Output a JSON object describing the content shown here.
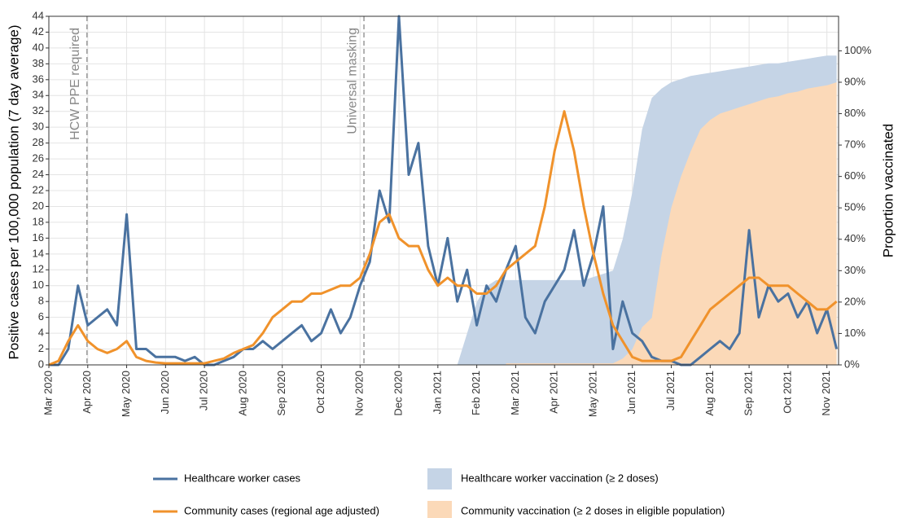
{
  "chart_data": {
    "type": "line",
    "y_label": "Positive cases per 100,000 population (7 day average)",
    "y2_label": "Proportion vaccinated",
    "x": [
      0,
      0.25,
      0.5,
      0.75,
      1,
      1.25,
      1.5,
      1.75,
      2,
      2.25,
      2.5,
      2.75,
      3,
      3.25,
      3.5,
      3.75,
      4,
      4.25,
      4.5,
      4.75,
      5,
      5.25,
      5.5,
      5.75,
      6,
      6.25,
      6.5,
      6.75,
      7,
      7.25,
      7.5,
      7.75,
      8,
      8.25,
      8.5,
      8.75,
      9,
      9.25,
      9.5,
      9.75,
      10,
      10.25,
      10.5,
      10.75,
      11,
      11.25,
      11.5,
      11.75,
      12,
      12.25,
      12.5,
      12.75,
      13,
      13.25,
      13.5,
      13.75,
      14,
      14.25,
      14.5,
      14.75,
      15,
      15.25,
      15.5,
      15.75,
      16,
      16.25,
      16.5,
      16.75,
      17,
      17.25,
      17.5,
      17.75,
      18,
      18.25,
      18.5,
      18.75,
      19,
      19.25,
      19.5,
      19.75,
      20,
      20.25
    ],
    "xlim": [
      0,
      20.3
    ],
    "xticks": [
      {
        "value": 0,
        "label": "Mar 2020"
      },
      {
        "value": 1,
        "label": "Apr 2020"
      },
      {
        "value": 2,
        "label": "May 2020"
      },
      {
        "value": 3,
        "label": "Jun 2020"
      },
      {
        "value": 4,
        "label": "Jul 2020"
      },
      {
        "value": 5,
        "label": "Aug 2020"
      },
      {
        "value": 6,
        "label": "Sep 2020"
      },
      {
        "value": 7,
        "label": "Oct 2020"
      },
      {
        "value": 8,
        "label": "Nov 2020"
      },
      {
        "value": 9,
        "label": "Dec 2020"
      },
      {
        "value": 10,
        "label": "Jan 2021"
      },
      {
        "value": 11,
        "label": "Feb 2021"
      },
      {
        "value": 12,
        "label": "Mar 2021"
      },
      {
        "value": 13,
        "label": "Apr 2021"
      },
      {
        "value": 14,
        "label": "May 2021"
      },
      {
        "value": 15,
        "label": "Jun 2021"
      },
      {
        "value": 16,
        "label": "Jul 2021"
      },
      {
        "value": 17,
        "label": "Aug 2021"
      },
      {
        "value": 18,
        "label": "Sep 2021"
      },
      {
        "value": 19,
        "label": "Oct 2021"
      },
      {
        "value": 20,
        "label": "Nov 2021"
      }
    ],
    "ylim": [
      0,
      44
    ],
    "yticks": [
      0,
      2,
      4,
      6,
      8,
      10,
      12,
      14,
      16,
      18,
      20,
      22,
      24,
      26,
      28,
      30,
      32,
      34,
      36,
      38,
      40,
      42,
      44
    ],
    "y2lim": [
      0,
      111
    ],
    "y2ticks": [
      {
        "value": 0,
        "label": "0%"
      },
      {
        "value": 10,
        "label": "10%"
      },
      {
        "value": 20,
        "label": "20%"
      },
      {
        "value": 30,
        "label": "30%"
      },
      {
        "value": 40,
        "label": "40%"
      },
      {
        "value": 50,
        "label": "50%"
      },
      {
        "value": 60,
        "label": "60%"
      },
      {
        "value": 70,
        "label": "70%"
      },
      {
        "value": 80,
        "label": "80%"
      },
      {
        "value": 90,
        "label": "90%"
      },
      {
        "value": 100,
        "label": "100%"
      }
    ],
    "grid": true,
    "series": [
      {
        "name": "Healthcare worker vaccination (≥ 2 doses)",
        "type": "area",
        "axis": "y2",
        "color": "#c5d4e6",
        "values": [
          null,
          null,
          null,
          null,
          null,
          null,
          null,
          null,
          null,
          null,
          null,
          null,
          null,
          null,
          null,
          null,
          null,
          null,
          null,
          null,
          null,
          null,
          null,
          null,
          null,
          null,
          null,
          null,
          null,
          null,
          null,
          null,
          null,
          null,
          null,
          null,
          null,
          null,
          null,
          null,
          null,
          null,
          0,
          10,
          20,
          25,
          27,
          27,
          27,
          27,
          27,
          27,
          27,
          27,
          27,
          27,
          28,
          29,
          30,
          40,
          55,
          75,
          85,
          88,
          90,
          91,
          92,
          92.5,
          93,
          93.5,
          94,
          94.5,
          95,
          95.5,
          96,
          96,
          96.5,
          97,
          97.5,
          98,
          98.5,
          98.5
        ]
      },
      {
        "name": "Community vaccination (≥ 2 doses in eligible population)",
        "type": "area",
        "axis": "y2",
        "color": "#fbd9b8",
        "values": [
          null,
          null,
          null,
          null,
          null,
          null,
          null,
          null,
          null,
          null,
          null,
          null,
          null,
          null,
          null,
          null,
          null,
          null,
          null,
          null,
          null,
          null,
          null,
          null,
          null,
          null,
          null,
          null,
          null,
          null,
          null,
          null,
          null,
          null,
          null,
          null,
          null,
          null,
          null,
          null,
          null,
          null,
          null,
          null,
          null,
          null,
          null,
          0.5,
          0.5,
          0.5,
          0.5,
          0.5,
          0.5,
          0.5,
          0.5,
          0.5,
          0.5,
          0.5,
          0.5,
          2,
          5,
          12,
          15,
          35,
          50,
          60,
          68,
          75,
          78,
          80,
          81,
          82,
          83,
          84,
          85,
          85.5,
          86.5,
          87,
          88,
          88.5,
          89,
          90
        ]
      },
      {
        "name": "Healthcare worker cases",
        "type": "line",
        "color": "#4a72a0",
        "values": [
          0,
          0,
          2,
          10,
          5,
          6,
          7,
          5,
          19,
          2,
          2,
          1,
          1,
          1,
          0.5,
          1,
          0,
          0,
          0.5,
          1,
          2,
          2,
          3,
          2,
          3,
          4,
          5,
          3,
          4,
          7,
          4,
          6,
          10,
          13,
          22,
          18,
          44,
          24,
          28,
          15,
          10,
          16,
          8,
          12,
          5,
          10,
          8,
          12,
          15,
          6,
          4,
          8,
          10,
          12,
          17,
          10,
          14,
          20,
          2,
          8,
          4,
          3,
          1,
          0.5,
          0.5,
          0,
          0,
          1,
          2,
          3,
          2,
          4,
          17,
          6,
          10,
          8,
          9,
          6,
          8,
          4,
          7,
          2
        ]
      },
      {
        "name": "Community cases (regional age adjusted)",
        "type": "line",
        "color": "#f0922b",
        "values": [
          0,
          0.5,
          3,
          5,
          3,
          2,
          1.5,
          2,
          3,
          1,
          0.5,
          0.3,
          0.2,
          0.2,
          0.2,
          0.2,
          0.2,
          0.5,
          0.8,
          1.5,
          2,
          2.5,
          4,
          6,
          7,
          8,
          8,
          9,
          9,
          9.5,
          10,
          10,
          11,
          14,
          18,
          19,
          16,
          15,
          15,
          12,
          10,
          11,
          10,
          10,
          9,
          9,
          10,
          12,
          13,
          14,
          15,
          20,
          27,
          32,
          27,
          20,
          14,
          9,
          5,
          3,
          1,
          0.5,
          0.5,
          0.5,
          0.5,
          1,
          3,
          5,
          7,
          8,
          9,
          10,
          11,
          11,
          10,
          10,
          10,
          9,
          8,
          7,
          7,
          8
        ]
      }
    ],
    "annotations": [
      {
        "x": 0.98,
        "text": "HCW PPE required"
      },
      {
        "x": 8.1,
        "text": "Universal masking"
      }
    ]
  }
}
